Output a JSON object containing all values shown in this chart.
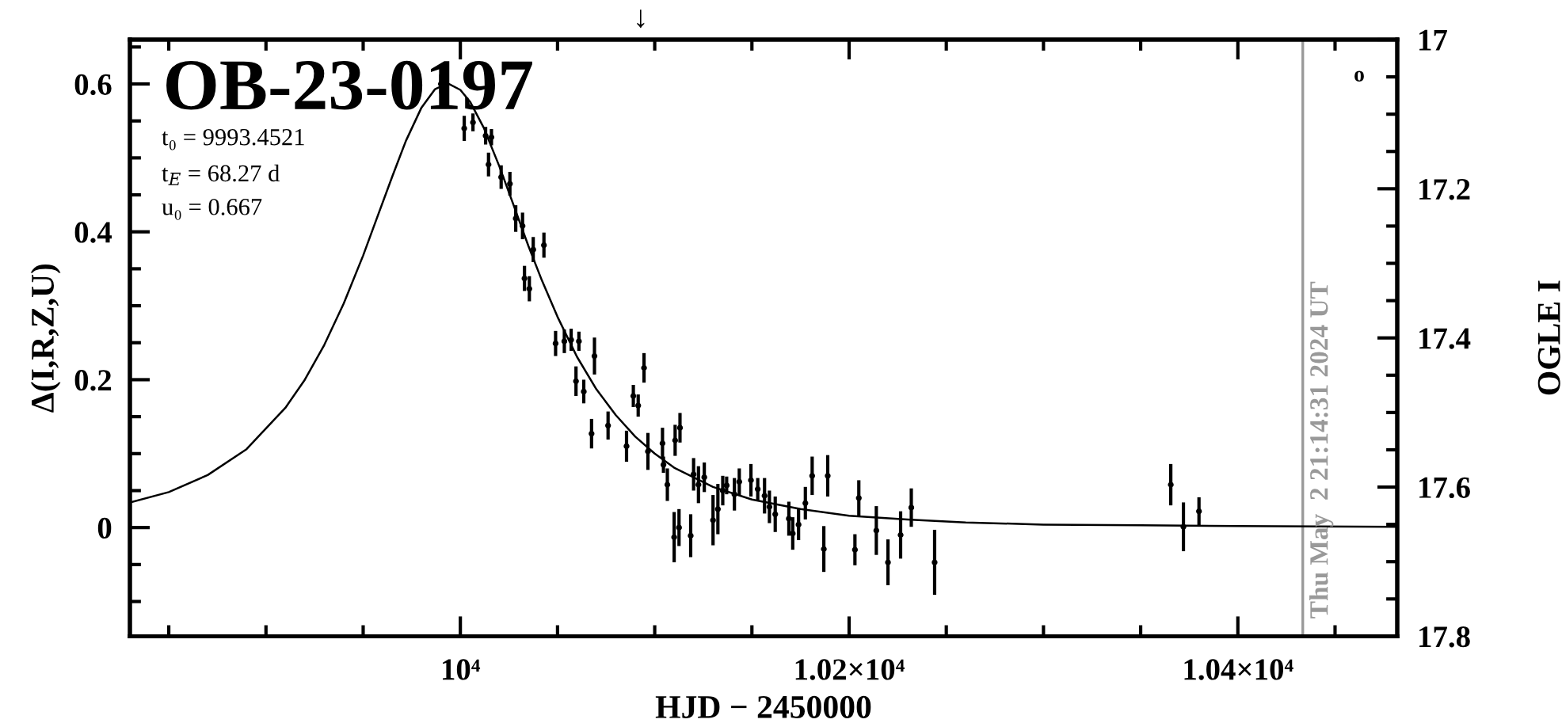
{
  "chart_data": {
    "type": "scatter",
    "title": "OB-23-0197",
    "xlabel": "HJD − 2450000",
    "ylabel": "Δ(I,R,Z,U)",
    "y2label": "OGLE I",
    "annotations": [
      "t₀ = 9993.4521",
      "t$_{E}$ = 68.27 d",
      "u₀ = 0.667",
      "o",
      "↓",
      "Thu May  2 21:14:31 2024 UT"
    ],
    "xlim": [
      9830,
      10482
    ],
    "ylim": [
      -0.147,
      0.66
    ],
    "y2lim": [
      17.8,
      17
    ],
    "xticks": [
      {
        "value": 9850,
        "label": null
      },
      {
        "value": 9900,
        "label": null
      },
      {
        "value": 9950,
        "label": null
      },
      {
        "value": 10000,
        "label": "10⁴"
      },
      {
        "value": 10050,
        "label": null
      },
      {
        "value": 10100,
        "label": null
      },
      {
        "value": 10150,
        "label": null
      },
      {
        "value": 10200,
        "label": "1.02×10⁴"
      },
      {
        "value": 10250,
        "label": null
      },
      {
        "value": 10300,
        "label": null
      },
      {
        "value": 10350,
        "label": null
      },
      {
        "value": 10400,
        "label": "1.04×10⁴"
      },
      {
        "value": 10450,
        "label": null
      }
    ],
    "yticks": [
      {
        "value": -0.1,
        "label": null
      },
      {
        "value": -0.05,
        "label": null
      },
      0,
      {
        "value": 0.05,
        "label": null
      },
      {
        "value": 0.1,
        "label": null
      },
      {
        "value": 0.15,
        "label": null
      },
      0.2,
      {
        "value": 0.25,
        "label": null
      },
      {
        "value": 0.3,
        "label": null
      },
      {
        "value": 0.35,
        "label": null
      },
      0.4,
      {
        "value": 0.45,
        "label": null
      },
      {
        "value": 0.5,
        "label": null
      },
      {
        "value": 0.55,
        "label": null
      },
      0.6,
      {
        "value": 0.65,
        "label": null
      }
    ],
    "y2ticks": [
      17,
      {
        "value": 17.05,
        "label": null
      },
      {
        "value": 17.1,
        "label": null
      },
      {
        "value": 17.15,
        "label": null
      },
      17.2,
      {
        "value": 17.25,
        "label": null
      },
      {
        "value": 17.3,
        "label": null
      },
      {
        "value": 17.35,
        "label": null
      },
      17.4,
      {
        "value": 17.45,
        "label": null
      },
      {
        "value": 17.5,
        "label": null
      },
      {
        "value": 17.55,
        "label": null
      },
      17.6,
      {
        "value": 17.65,
        "label": null
      },
      {
        "value": 17.7,
        "label": null
      },
      {
        "value": 17.75,
        "label": null
      },
      17.8
    ],
    "ref_lines": [
      {
        "axis": "x",
        "value": 10433.4,
        "color": "#999999"
      }
    ],
    "series": [
      {
        "type": "line",
        "color": "#000000",
        "x": [
          9830,
          9850,
          9870,
          9890,
          9910,
          9920,
          9930,
          9940,
          9950,
          9957,
          9965,
          9972,
          9980,
          9987,
          9993.45,
          10000,
          10005,
          10012,
          10020,
          10027,
          10035,
          10042,
          10050,
          10060,
          10070,
          10080,
          10090,
          10100,
          10110,
          10130,
          10150,
          10175,
          10200,
          10230,
          10260,
          10300,
          10350,
          10400,
          10482
        ],
        "values": [
          0.034,
          0.048,
          0.071,
          0.106,
          0.162,
          0.2,
          0.247,
          0.303,
          0.368,
          0.418,
          0.475,
          0.523,
          0.568,
          0.593,
          0.601,
          0.592,
          0.576,
          0.541,
          0.489,
          0.439,
          0.381,
          0.334,
          0.285,
          0.231,
          0.187,
          0.152,
          0.123,
          0.1,
          0.081,
          0.055,
          0.038,
          0.025,
          0.016,
          0.011,
          0.007,
          0.004,
          0.003,
          0.002,
          0.001
        ]
      },
      {
        "color": "#000000",
        "marker": "circle",
        "x": [
          9990,
          10002,
          10006.5,
          10013,
          10014.5,
          10016,
          10021,
          10025.5,
          10028.5,
          10032,
          10033,
          10035.5,
          10037.5,
          10043,
          10049,
          10053.5,
          10057,
          10059.5,
          10061,
          10063.5,
          10067.5,
          10069,
          10076,
          10085.5,
          10089,
          10091.5,
          10094.5,
          10096.5,
          10104,
          10104.5,
          10106.5,
          10110,
          10110.5,
          10112.5,
          10113,
          10118.5,
          10120,
          10122.5,
          10125.5,
          10130,
          10132.5,
          10135,
          10137,
          10141,
          10143.5,
          10149.5,
          10153,
          10156.5,
          10159,
          10162,
          10169,
          10171,
          10174,
          10177.5,
          10181,
          10187,
          10189,
          10203,
          10205,
          10214,
          10220,
          10226.5,
          10232,
          10244,
          10365.5,
          10372,
          10380
        ],
        "values": [
          0.6,
          0.54,
          0.548,
          0.53,
          0.491,
          0.528,
          0.474,
          0.465,
          0.418,
          0.408,
          0.337,
          0.323,
          0.376,
          0.382,
          0.249,
          0.252,
          0.254,
          0.198,
          0.252,
          0.184,
          0.127,
          0.232,
          0.138,
          0.11,
          0.178,
          0.165,
          0.216,
          0.103,
          0.114,
          0.085,
          0.058,
          -0.013,
          0.118,
          0.0,
          0.135,
          -0.011,
          0.072,
          0.058,
          0.068,
          0.01,
          0.025,
          0.05,
          0.057,
          0.045,
          0.062,
          0.064,
          0.052,
          0.043,
          0.028,
          0.018,
          0.012,
          -0.008,
          0.004,
          0.033,
          0.07,
          -0.029,
          0.07,
          -0.03,
          0.04,
          -0.004,
          -0.047,
          -0.01,
          0.027,
          -0.047,
          0.058,
          0.001,
          0.022
        ],
        "errors": [
          0.013,
          0.017,
          0.012,
          0.012,
          0.016,
          0.011,
          0.016,
          0.016,
          0.018,
          0.018,
          0.017,
          0.017,
          0.017,
          0.017,
          0.017,
          0.016,
          0.015,
          0.02,
          0.013,
          0.016,
          0.02,
          0.025,
          0.019,
          0.021,
          0.015,
          0.015,
          0.02,
          0.025,
          0.021,
          0.011,
          0.022,
          0.034,
          0.021,
          0.025,
          0.02,
          0.029,
          0.022,
          0.025,
          0.02,
          0.034,
          0.034,
          0.02,
          0.012,
          0.022,
          0.018,
          0.022,
          0.015,
          0.024,
          0.022,
          0.024,
          0.023,
          0.022,
          0.021,
          0.022,
          0.026,
          0.031,
          0.028,
          0.021,
          0.024,
          0.033,
          0.031,
          0.032,
          0.026,
          0.044,
          0.028,
          0.033,
          0.019
        ]
      }
    ]
  }
}
